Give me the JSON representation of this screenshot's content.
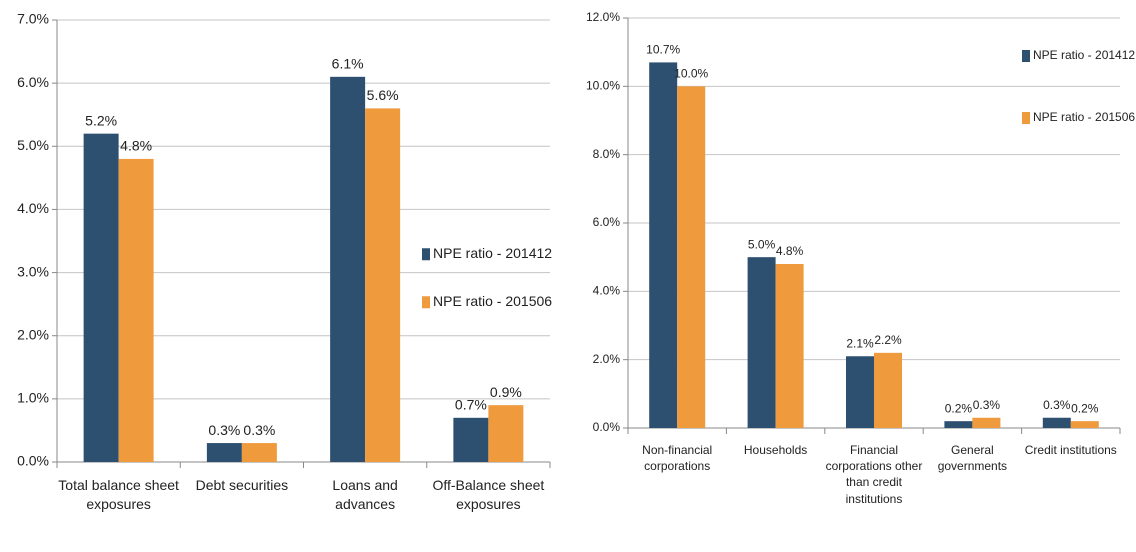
{
  "chart_data": [
    {
      "type": "bar",
      "categories": [
        "Total balance sheet exposures",
        "Debt securities",
        "Loans and advances",
        "Off-Balance sheet exposures"
      ],
      "series": [
        {
          "name": "NPE ratio - 201412",
          "color": "#2e5070",
          "values": [
            5.2,
            0.3,
            6.1,
            0.7
          ],
          "value_labels": [
            "5.2%",
            "0.3%",
            "6.1%",
            "0.7%"
          ]
        },
        {
          "name": "NPE ratio - 201506",
          "color": "#f09a3e",
          "values": [
            4.8,
            0.3,
            5.6,
            0.9
          ],
          "value_labels": [
            "4.8%",
            "0.3%",
            "5.6%",
            "0.9%"
          ]
        }
      ],
      "ylim": [
        0,
        7
      ],
      "yticks": [
        {
          "value": 0,
          "label": "0.0%"
        },
        {
          "value": 1,
          "label": "1.0%"
        },
        {
          "value": 2,
          "label": "2.0%"
        },
        {
          "value": 3,
          "label": "3.0%"
        },
        {
          "value": 4,
          "label": "4.0%"
        },
        {
          "value": 5,
          "label": "5.0%"
        },
        {
          "value": 6,
          "label": "6.0%"
        },
        {
          "value": 7,
          "label": "7.0%"
        }
      ],
      "grid": true,
      "legend_position": "right"
    },
    {
      "type": "bar",
      "categories": [
        "Non-financial corporations",
        "Households",
        "Financial corporations other than credit institutions",
        "General governments",
        "Credit institutions"
      ],
      "series": [
        {
          "name": "NPE ratio - 201412",
          "color": "#2e5070",
          "values": [
            10.7,
            5.0,
            2.1,
            0.2,
            0.3
          ],
          "value_labels": [
            "10.7%",
            "5.0%",
            "2.1%",
            "0.2%",
            "0.3%"
          ]
        },
        {
          "name": "NPE ratio - 201506",
          "color": "#f09a3e",
          "values": [
            10.0,
            4.8,
            2.2,
            0.3,
            0.2
          ],
          "value_labels": [
            "10.0%",
            "4.8%",
            "2.2%",
            "0.3%",
            "0.2%"
          ]
        }
      ],
      "ylim": [
        0,
        12
      ],
      "yticks": [
        {
          "value": 0,
          "label": "0.0%"
        },
        {
          "value": 2,
          "label": "2.0%"
        },
        {
          "value": 4,
          "label": "4.0%"
        },
        {
          "value": 6,
          "label": "6.0%"
        },
        {
          "value": 8,
          "label": "8.0%"
        },
        {
          "value": 10,
          "label": "10.0%"
        },
        {
          "value": 12,
          "label": "12.0%"
        }
      ],
      "grid": true,
      "legend_position": "top right"
    }
  ]
}
